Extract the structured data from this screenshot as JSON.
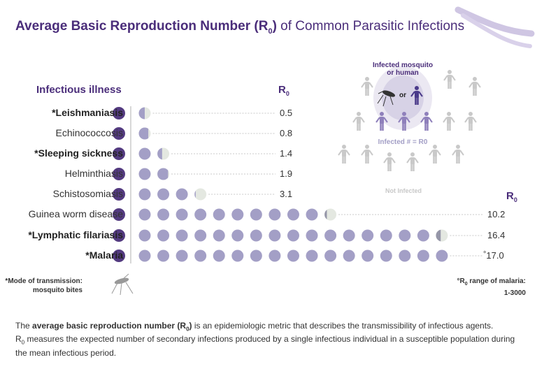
{
  "title": {
    "bold": "Average Basic Reproduction Number (R",
    "sub": "0",
    "bold_end": ")",
    "rest": " of Common Parasitic Infections"
  },
  "column_header": "Infectious illness",
  "r0_header": "R",
  "r0_sub": "0",
  "chart_data": {
    "type": "pictogram",
    "title": "Average Basic Reproduction Number (R0) of Common Parasitic Infections",
    "categories": [
      "*Leishmaniasis",
      "Echinococcosis",
      "*Sleeping sickness",
      "Helminthiasis",
      "Schistosomiasis",
      "Guinea worm disease",
      "*Lymphatic filariasis",
      "*Malaria"
    ],
    "values": [
      0.5,
      0.8,
      1.4,
      1.9,
      3.1,
      10.2,
      16.4,
      17.0
    ],
    "value_labels": [
      "0.5",
      "0.8",
      "1.4",
      "1.9",
      "3.1",
      "10.2",
      "16.4",
      "17.0"
    ],
    "bold": [
      true,
      false,
      true,
      false,
      false,
      false,
      true,
      true
    ],
    "unit": "one dot = 1 infected person"
  },
  "colors": {
    "title": "#4a2d7a",
    "marker": "#533a80",
    "dot": "#a39fc6",
    "dot_partial": "#9596a8",
    "dot_empty": "#e4e8e1"
  },
  "notes": {
    "mosquito": "*Mode of transmission:",
    "mosquito2": "mosquito bites",
    "malaria": "R",
    "malaria_sub": "0",
    "malaria_rest": " range of malaria:",
    "malaria_range": "1-3000",
    "malaria_mark": "°"
  },
  "legend": {
    "infected_source": "Infected mosquito",
    "infected_source2": "or human",
    "or": "or",
    "infected": "Infected # = R0",
    "not_infected": "Not Infected",
    "r0": "R",
    "r0_sub": "0"
  },
  "footer": {
    "bold": "average basic reproduction number (R",
    "bold_sub": "0",
    "bold_end": ")",
    "pre": "The ",
    "line1": " is an epidemiologic metric that describes the transmissibility of infectious agents.",
    "line2a": "R",
    "line2sub": "0",
    "line2": " measures the expected number of secondary infections produced by a single infectious individual in a susceptible population during the mean infectious period."
  }
}
